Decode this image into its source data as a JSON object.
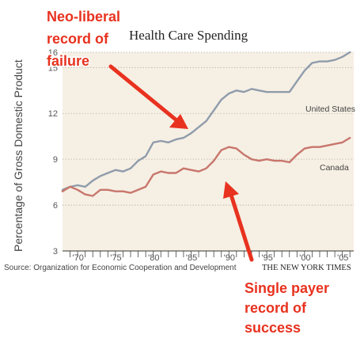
{
  "chart_data": {
    "type": "line",
    "title": "Health Care Spending",
    "ylabel": "Percentage of Gross Domestic Product",
    "xlabel": "",
    "ylim": [
      3,
      16
    ],
    "xlim": [
      1969,
      2007.5
    ],
    "yticks": [
      "3",
      "6",
      "9",
      "12",
      "15",
      "16"
    ],
    "xticks": [
      {
        "value": 1970,
        "label": "'70"
      },
      {
        "value": 1975,
        "label": "'75"
      },
      {
        "value": 1980,
        "label": "'80"
      },
      {
        "value": 1985,
        "label": "'85"
      },
      {
        "value": 1990,
        "label": "'90"
      },
      {
        "value": 1995,
        "label": "'95"
      },
      {
        "value": 2000,
        "label": "'00"
      },
      {
        "value": 2005,
        "label": "'05"
      }
    ],
    "grid": true,
    "series": [
      {
        "name": "United States",
        "color": "#8f9cab",
        "x": [
          1969,
          1970,
          1971,
          1972,
          1973,
          1974,
          1975,
          1976,
          1977,
          1978,
          1979,
          1980,
          1981,
          1982,
          1983,
          1984,
          1985,
          1986,
          1987,
          1988,
          1989,
          1990,
          1991,
          1992,
          1993,
          1994,
          1995,
          1996,
          1997,
          1998,
          1999,
          2000,
          2001,
          2002,
          2003,
          2004,
          2005,
          2006,
          2007
        ],
        "values": [
          7.0,
          7.2,
          7.3,
          7.2,
          7.6,
          7.9,
          8.1,
          8.3,
          8.2,
          8.4,
          8.9,
          9.2,
          10.1,
          10.2,
          10.1,
          10.3,
          10.4,
          10.7,
          11.1,
          11.5,
          12.2,
          12.9,
          13.3,
          13.5,
          13.4,
          13.6,
          13.5,
          13.4,
          13.4,
          13.4,
          13.4,
          14.1,
          14.8,
          15.3,
          15.4,
          15.4,
          15.5,
          15.7,
          16.0
        ]
      },
      {
        "name": "Canada",
        "color": "#c8766c",
        "x": [
          1969,
          1970,
          1971,
          1972,
          1973,
          1974,
          1975,
          1976,
          1977,
          1978,
          1979,
          1980,
          1981,
          1982,
          1983,
          1984,
          1985,
          1986,
          1987,
          1988,
          1989,
          1990,
          1991,
          1992,
          1993,
          1994,
          1995,
          1996,
          1997,
          1998,
          1999,
          2000,
          2001,
          2002,
          2003,
          2004,
          2005,
          2006,
          2007
        ],
        "values": [
          6.9,
          7.2,
          7.0,
          6.7,
          6.6,
          7.0,
          7.0,
          6.9,
          6.9,
          6.8,
          7.0,
          7.2,
          8.0,
          8.2,
          8.1,
          8.1,
          8.4,
          8.3,
          8.2,
          8.4,
          8.9,
          9.6,
          9.8,
          9.7,
          9.3,
          9.0,
          8.9,
          9.0,
          8.9,
          8.9,
          8.8,
          9.3,
          9.7,
          9.8,
          9.8,
          9.9,
          10.0,
          10.1,
          10.4
        ]
      }
    ],
    "source": "Source: Organization for Economic Cooperation and Development",
    "credit": "THE NEW YORK TIMES"
  },
  "annotations": {
    "top": [
      "Neo-liberal",
      "record of",
      "failure"
    ],
    "bottom": [
      "Single payer",
      "record of",
      "success"
    ],
    "color": "#e8321f"
  }
}
